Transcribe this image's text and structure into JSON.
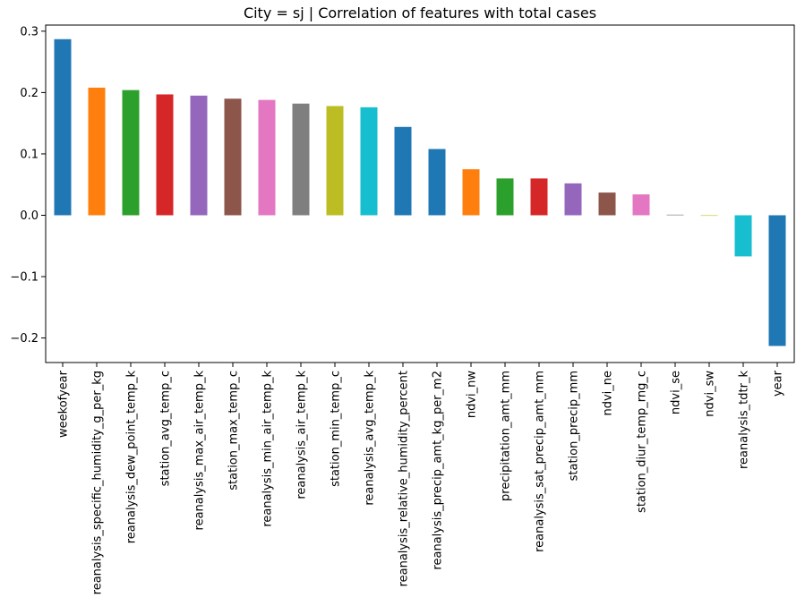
{
  "chart_data": {
    "type": "bar",
    "title": "City = sj | Correlation of features with total cases",
    "xlabel": "",
    "ylabel": "",
    "ylim": [
      -0.24,
      0.31
    ],
    "yticks": [
      0.3,
      0.2,
      0.1,
      0.0,
      -0.1,
      -0.2
    ],
    "ytick_labels": [
      "0.3",
      "0.2",
      "0.1",
      "0.0",
      "−0.1",
      "−0.2"
    ],
    "grid": false,
    "legend": "none",
    "categories": [
      "weekofyear",
      "reanalysis_specific_humidity_g_per_kg",
      "reanalysis_dew_point_temp_k",
      "station_avg_temp_c",
      "reanalysis_max_air_temp_k",
      "station_max_temp_c",
      "reanalysis_min_air_temp_k",
      "reanalysis_air_temp_k",
      "station_min_temp_c",
      "reanalysis_avg_temp_k",
      "reanalysis_relative_humidity_percent",
      "reanalysis_precip_amt_kg_per_m2",
      "ndvi_nw",
      "precipitation_amt_mm",
      "reanalysis_sat_precip_amt_mm",
      "station_precip_mm",
      "ndvi_ne",
      "station_diur_temp_rng_c",
      "ndvi_se",
      "ndvi_sw",
      "reanalysis_tdtr_k",
      "year"
    ],
    "values": [
      0.287,
      0.208,
      0.204,
      0.197,
      0.195,
      0.19,
      0.188,
      0.182,
      0.178,
      0.176,
      0.144,
      0.108,
      0.075,
      0.06,
      0.06,
      0.052,
      0.037,
      0.034,
      0.001,
      0.0,
      -0.067,
      -0.213
    ],
    "colors": [
      "#1f77b4",
      "#ff7f0e",
      "#2ca02c",
      "#d62728",
      "#9467bd",
      "#8c564b",
      "#e377c2",
      "#7f7f7f",
      "#bcbd22",
      "#17becf",
      "#1f77b4",
      "#1f77b4",
      "#ff7f0e",
      "#2ca02c",
      "#d62728",
      "#9467bd",
      "#8c564b",
      "#e377c2",
      "#7f7f7f",
      "#bcbd22",
      "#17becf",
      "#1f77b4"
    ]
  }
}
